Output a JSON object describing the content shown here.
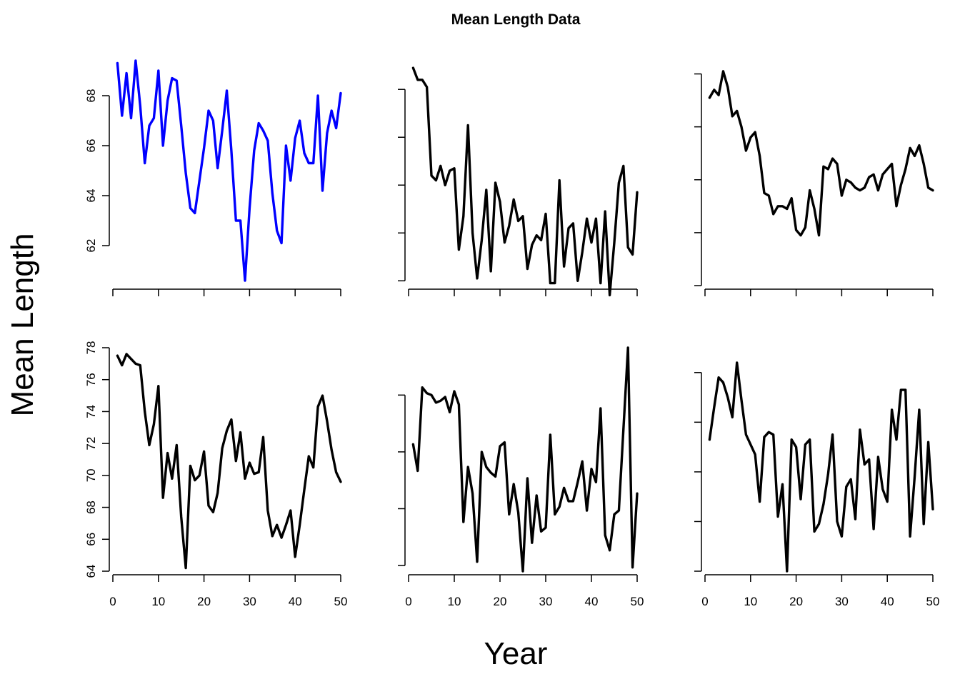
{
  "title": "Mean Length Data",
  "xlabel": "Year",
  "ylabel": "Mean Length",
  "colors": {
    "highlight": "#0000ff",
    "default": "#000000",
    "axis": "#000000"
  },
  "chart_data": [
    {
      "type": "line",
      "panel": "row1-col1",
      "color": "#0000ff",
      "xlim": [
        0,
        50
      ],
      "ylim": [
        60.4,
        69.4
      ],
      "yticks": [
        62,
        64,
        66,
        68
      ],
      "xticks": [
        0,
        10,
        20,
        30,
        40,
        50
      ],
      "show_ytick_labels": true,
      "show_xtick_labels": false,
      "x": [
        1,
        2,
        3,
        4,
        5,
        6,
        7,
        8,
        9,
        10,
        11,
        12,
        13,
        14,
        15,
        16,
        17,
        18,
        19,
        20,
        21,
        22,
        23,
        24,
        25,
        26,
        27,
        28,
        29,
        30,
        31,
        32,
        33,
        34,
        35,
        36,
        37,
        38,
        39,
        40,
        41,
        42,
        43,
        44,
        45,
        46,
        47,
        48,
        49,
        50
      ],
      "values": [
        69.3,
        67.2,
        68.9,
        67.1,
        69.4,
        67.6,
        65.3,
        66.8,
        67.1,
        69.0,
        66.0,
        67.8,
        68.7,
        68.6,
        66.8,
        64.9,
        63.5,
        63.3,
        64.6,
        65.9,
        67.4,
        67.0,
        65.1,
        66.6,
        68.2,
        65.8,
        63.0,
        63.0,
        60.6,
        63.5,
        65.8,
        66.9,
        66.6,
        66.2,
        64.1,
        62.6,
        62.1,
        66.0,
        64.6,
        66.3,
        67.0,
        65.7,
        65.3,
        65.3,
        68.0,
        64.2,
        66.5,
        67.4,
        66.7,
        68.1
      ]
    },
    {
      "type": "line",
      "panel": "row1-col2",
      "color": "#000000",
      "xlim": [
        0,
        50
      ],
      "ylim": [
        59.8,
        69.2
      ],
      "yticks": [
        60,
        62,
        64,
        66,
        68
      ],
      "xticks": [
        0,
        10,
        20,
        30,
        40,
        50
      ],
      "show_ytick_labels": false,
      "show_xtick_labels": false,
      "x": [
        1,
        2,
        3,
        4,
        5,
        6,
        7,
        8,
        9,
        10,
        11,
        12,
        13,
        14,
        15,
        16,
        17,
        18,
        19,
        20,
        21,
        22,
        23,
        24,
        25,
        26,
        27,
        28,
        29,
        30,
        31,
        32,
        33,
        34,
        35,
        36,
        37,
        38,
        39,
        40,
        41,
        42,
        43,
        44,
        45,
        46,
        47,
        48,
        49,
        50
      ],
      "values": [
        68.9,
        68.4,
        68.4,
        68.1,
        64.4,
        64.2,
        64.8,
        64.0,
        64.6,
        64.7,
        61.3,
        62.7,
        66.5,
        62.0,
        60.1,
        61.7,
        63.8,
        60.4,
        64.1,
        63.3,
        61.6,
        62.3,
        63.4,
        62.5,
        62.7,
        60.5,
        61.5,
        61.9,
        61.7,
        62.8,
        59.9,
        59.9,
        64.2,
        60.6,
        62.2,
        62.4,
        60.0,
        61.2,
        62.6,
        61.6,
        62.6,
        59.9,
        62.9,
        59.4,
        61.6,
        64.1,
        64.8,
        61.4,
        61.1,
        63.7
      ]
    },
    {
      "type": "line",
      "panel": "row1-col3",
      "color": "#000000",
      "xlim": [
        0,
        50
      ],
      "ylim": [
        51.0,
        59.5
      ],
      "yticks": [
        51,
        53,
        55,
        57,
        59
      ],
      "xticks": [
        0,
        10,
        20,
        30,
        40,
        50
      ],
      "show_ytick_labels": false,
      "show_xtick_labels": false,
      "x": [
        1,
        2,
        3,
        4,
        5,
        6,
        7,
        8,
        9,
        10,
        11,
        12,
        13,
        14,
        15,
        16,
        17,
        18,
        19,
        20,
        21,
        22,
        23,
        24,
        25,
        26,
        27,
        28,
        29,
        30,
        31,
        32,
        33,
        34,
        35,
        36,
        37,
        38,
        39,
        40,
        41,
        42,
        43,
        44,
        45,
        46,
        47,
        48,
        49,
        50
      ],
      "values": [
        58.1,
        58.4,
        58.2,
        59.1,
        58.5,
        57.4,
        57.6,
        57.0,
        56.1,
        56.6,
        56.8,
        55.9,
        54.5,
        54.4,
        53.7,
        54.0,
        54.0,
        53.9,
        54.3,
        53.1,
        52.9,
        53.2,
        54.6,
        53.9,
        52.9,
        55.5,
        55.4,
        55.8,
        55.6,
        54.4,
        55.0,
        54.9,
        54.7,
        54.6,
        54.7,
        55.1,
        55.2,
        54.6,
        55.2,
        55.4,
        55.6,
        54.0,
        54.8,
        55.4,
        56.2,
        55.9,
        56.3,
        55.6,
        54.7,
        54.6
      ]
    },
    {
      "type": "line",
      "panel": "row2-col1",
      "color": "#000000",
      "xlim": [
        0,
        50
      ],
      "ylim": [
        64.0,
        78.0
      ],
      "yticks": [
        64,
        66,
        68,
        70,
        72,
        74,
        76,
        78
      ],
      "xticks": [
        0,
        10,
        20,
        30,
        40,
        50
      ],
      "show_ytick_labels": true,
      "show_xtick_labels": true,
      "x": [
        1,
        2,
        3,
        4,
        5,
        6,
        7,
        8,
        9,
        10,
        11,
        12,
        13,
        14,
        15,
        16,
        17,
        18,
        19,
        20,
        21,
        22,
        23,
        24,
        25,
        26,
        27,
        28,
        29,
        30,
        31,
        32,
        33,
        34,
        35,
        36,
        37,
        38,
        39,
        40,
        41,
        42,
        43,
        44,
        45,
        46,
        47,
        48,
        49,
        50
      ],
      "values": [
        77.5,
        76.9,
        77.6,
        77.3,
        77.0,
        76.9,
        74.0,
        71.9,
        73.2,
        75.6,
        68.6,
        71.4,
        69.8,
        71.9,
        67.4,
        64.2,
        70.6,
        69.7,
        70.0,
        71.5,
        68.1,
        67.7,
        68.9,
        71.7,
        72.8,
        73.5,
        70.9,
        72.7,
        69.8,
        70.8,
        70.1,
        70.2,
        72.4,
        67.8,
        66.2,
        66.9,
        66.1,
        66.9,
        67.8,
        64.9,
        66.9,
        69.1,
        71.2,
        70.5,
        74.3,
        75.0,
        73.4,
        71.6,
        70.2,
        69.6
      ]
    },
    {
      "type": "line",
      "panel": "row2-col2",
      "color": "#000000",
      "xlim": [
        0,
        50
      ],
      "ylim": [
        65.7,
        77.5
      ],
      "yticks": [
        66,
        69,
        72,
        75
      ],
      "xticks": [
        0,
        10,
        20,
        30,
        40,
        50
      ],
      "show_ytick_labels": false,
      "show_xtick_labels": true,
      "x": [
        1,
        2,
        3,
        4,
        5,
        6,
        7,
        8,
        9,
        10,
        11,
        12,
        13,
        14,
        15,
        16,
        17,
        18,
        19,
        20,
        21,
        22,
        23,
        24,
        25,
        26,
        27,
        28,
        29,
        30,
        31,
        32,
        33,
        34,
        35,
        36,
        37,
        38,
        39,
        40,
        41,
        42,
        43,
        44,
        45,
        46,
        47,
        48,
        49,
        50
      ],
      "values": [
        72.4,
        71.0,
        75.4,
        75.1,
        75.0,
        74.6,
        74.7,
        74.9,
        74.1,
        75.2,
        74.5,
        68.3,
        71.2,
        69.8,
        66.2,
        72.0,
        71.2,
        70.9,
        70.7,
        72.3,
        72.5,
        68.7,
        70.3,
        68.8,
        65.7,
        70.6,
        67.2,
        69.7,
        67.8,
        68.0,
        72.9,
        68.7,
        69.1,
        70.1,
        69.4,
        69.4,
        70.4,
        71.5,
        68.9,
        71.1,
        70.4,
        74.3,
        67.6,
        66.8,
        68.7,
        68.9,
        73.2,
        77.5,
        65.9,
        69.8
      ]
    },
    {
      "type": "line",
      "panel": "row2-col3",
      "color": "#000000",
      "xlim": [
        0,
        50
      ],
      "ylim": [
        74.0,
        83.0
      ],
      "yticks": [
        74,
        76,
        78,
        80,
        82
      ],
      "xticks": [
        0,
        10,
        20,
        30,
        40,
        50
      ],
      "show_ytick_labels": false,
      "show_xtick_labels": true,
      "x": [
        1,
        2,
        3,
        4,
        5,
        6,
        7,
        8,
        9,
        10,
        11,
        12,
        13,
        14,
        15,
        16,
        17,
        18,
        19,
        20,
        21,
        22,
        23,
        24,
        25,
        26,
        27,
        28,
        29,
        30,
        31,
        32,
        33,
        34,
        35,
        36,
        37,
        38,
        39,
        40,
        41,
        42,
        43,
        44,
        45,
        46,
        47,
        48,
        49,
        50
      ],
      "values": [
        79.3,
        80.6,
        81.8,
        81.6,
        81.0,
        80.2,
        82.4,
        80.9,
        79.5,
        79.1,
        78.7,
        76.8,
        79.4,
        79.6,
        79.5,
        76.2,
        77.5,
        74.0,
        79.3,
        79.0,
        76.9,
        79.1,
        79.3,
        75.6,
        75.9,
        76.7,
        77.9,
        79.5,
        76.0,
        75.4,
        77.4,
        77.7,
        76.1,
        79.7,
        78.3,
        78.5,
        75.7,
        78.6,
        77.3,
        76.8,
        80.5,
        79.3,
        81.3,
        81.3,
        75.4,
        77.8,
        80.5,
        75.9,
        79.2,
        76.5
      ]
    }
  ]
}
